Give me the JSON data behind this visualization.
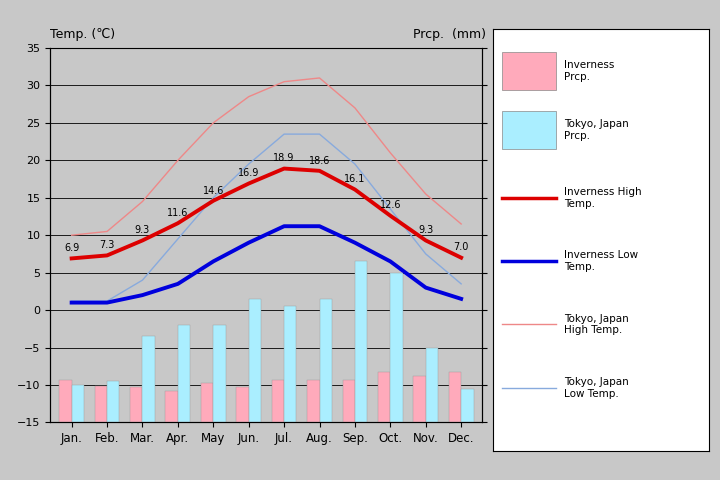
{
  "months": [
    "Jan.",
    "Feb.",
    "Mar.",
    "Apr.",
    "May",
    "Jun.",
    "Jul.",
    "Aug.",
    "Sep.",
    "Oct.",
    "Nov.",
    "Dec."
  ],
  "inverness_high": [
    6.9,
    7.3,
    9.3,
    11.6,
    14.6,
    16.9,
    18.9,
    18.6,
    16.1,
    12.6,
    9.3,
    7.0
  ],
  "inverness_low": [
    1.0,
    1.0,
    2.0,
    3.5,
    6.5,
    9.0,
    11.2,
    11.2,
    9.0,
    6.5,
    3.0,
    1.5
  ],
  "tokyo_high": [
    10.0,
    10.5,
    14.5,
    20.0,
    25.0,
    28.5,
    30.5,
    31.0,
    27.0,
    21.0,
    15.5,
    11.5
  ],
  "tokyo_low": [
    1.2,
    1.2,
    4.0,
    9.5,
    15.0,
    19.5,
    23.5,
    23.5,
    19.5,
    13.5,
    7.5,
    3.5
  ],
  "inverness_prcp_mm": [
    57,
    48,
    47,
    42,
    52,
    47,
    57,
    57,
    57,
    67,
    62,
    67
  ],
  "tokyo_prcp_mm": [
    50,
    55,
    115,
    130,
    130,
    165,
    155,
    165,
    215,
    200,
    100,
    45
  ],
  "temp_ylim": [
    -15,
    35
  ],
  "prcp_ylim": [
    0,
    500
  ],
  "background_color": "#c8c8c8",
  "plot_bg_color": "#c8c8c8",
  "inverness_high_color": "#dd0000",
  "inverness_low_color": "#0000dd",
  "tokyo_high_color": "#ee8888",
  "tokyo_low_color": "#88aadd",
  "inverness_prcp_color": "#ffaabb",
  "tokyo_prcp_color": "#aaeeff",
  "grid_color": "#000000",
  "title_left": "Temp. (℃)",
  "title_right": "Prcp.  (mm)"
}
